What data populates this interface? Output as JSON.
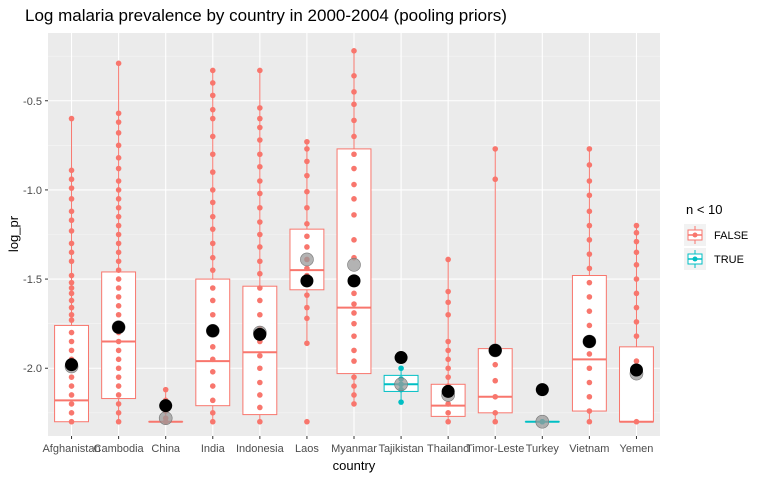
{
  "chart_data": {
    "type": "box",
    "title": "Log malaria prevalence by country in 2000-2004 (pooling priors)",
    "xlabel": "country",
    "ylabel": "log_pr",
    "ylim": [
      -2.38,
      -0.12
    ],
    "yticks": [
      -2.0,
      -1.5,
      -1.0,
      -0.5
    ],
    "ytick_labels": [
      "-2.0",
      "-1.5",
      "-1.0",
      "-0.5"
    ],
    "grid": true,
    "legend": {
      "title": "n < 10",
      "placement": "right",
      "items": [
        {
          "label": "FALSE",
          "color": "#F8766D"
        },
        {
          "label": "TRUE",
          "color": "#00BFC4"
        }
      ]
    },
    "colors": {
      "panel": "#EBEBEB",
      "grid_major": "#FFFFFF",
      "false": "#F8766D",
      "true": "#00BFC4",
      "estimate": "#000000",
      "prior": "#999999"
    },
    "categories": [
      "Afghanistan",
      "Cambodia",
      "China",
      "India",
      "Indonesia",
      "Laos",
      "Myanmar",
      "Tajikistan",
      "Thailand",
      "Timor-Leste",
      "Turkey",
      "Vietnam",
      "Yemen"
    ],
    "boxes": [
      {
        "country": "Afghanistan",
        "n_lt_10": "FALSE",
        "min": -2.3,
        "q1": -2.3,
        "median": -2.18,
        "q3": -1.76,
        "max": -0.6,
        "estimate": -1.98,
        "prior": -1.99,
        "points": [
          -0.6,
          -0.89,
          -0.94,
          -0.99,
          -1.05,
          -1.12,
          -1.17,
          -1.23,
          -1.3,
          -1.35,
          -1.4,
          -1.48,
          -1.52,
          -1.55,
          -1.58,
          -1.62,
          -1.66,
          -1.7,
          -1.73,
          -1.8,
          -1.85,
          -1.9,
          -1.95,
          -2.0,
          -2.05,
          -2.1,
          -2.15,
          -2.2,
          -2.25,
          -2.3
        ]
      },
      {
        "country": "Cambodia",
        "n_lt_10": "FALSE",
        "min": -2.3,
        "q1": -2.17,
        "median": -1.85,
        "q3": -1.46,
        "max": -0.29,
        "estimate": -1.77,
        "prior": -1.77,
        "points": [
          -0.29,
          -0.57,
          -0.62,
          -0.68,
          -0.75,
          -0.82,
          -0.88,
          -0.95,
          -1.0,
          -1.05,
          -1.1,
          -1.15,
          -1.2,
          -1.25,
          -1.3,
          -1.35,
          -1.4,
          -1.45,
          -1.5,
          -1.55,
          -1.6,
          -1.65,
          -1.7,
          -1.75,
          -1.8,
          -1.85,
          -1.9,
          -1.95,
          -2.0,
          -2.05,
          -2.1,
          -2.15,
          -2.2,
          -2.25,
          -2.3
        ]
      },
      {
        "country": "China",
        "n_lt_10": "FALSE",
        "min": -2.3,
        "q1": -2.3,
        "median": -2.3,
        "q3": -2.3,
        "max": -2.12,
        "estimate": -2.21,
        "prior": -2.28,
        "points": [
          -2.12,
          -2.18,
          -2.24,
          -2.28,
          -2.3
        ]
      },
      {
        "country": "India",
        "n_lt_10": "FALSE",
        "min": -2.3,
        "q1": -2.21,
        "median": -1.96,
        "q3": -1.5,
        "max": -0.33,
        "estimate": -1.79,
        "prior": -1.79,
        "points": [
          -0.33,
          -0.4,
          -0.47,
          -0.55,
          -0.6,
          -0.7,
          -0.8,
          -0.9,
          -1.0,
          -1.07,
          -1.15,
          -1.22,
          -1.3,
          -1.38,
          -1.45,
          -1.55,
          -1.62,
          -1.7,
          -1.8,
          -1.88,
          -1.95,
          -2.02,
          -2.1,
          -2.18,
          -2.25,
          -2.3
        ]
      },
      {
        "country": "Indonesia",
        "n_lt_10": "FALSE",
        "min": -2.3,
        "q1": -2.26,
        "median": -1.91,
        "q3": -1.54,
        "max": -0.33,
        "estimate": -1.81,
        "prior": -1.8,
        "points": [
          -0.33,
          -0.54,
          -0.6,
          -0.65,
          -0.72,
          -0.8,
          -0.87,
          -0.95,
          -1.02,
          -1.1,
          -1.18,
          -1.25,
          -1.32,
          -1.4,
          -1.47,
          -1.55,
          -1.62,
          -1.7,
          -1.78,
          -1.85,
          -1.93,
          -2.0,
          -2.08,
          -2.15,
          -2.22,
          -2.3
        ]
      },
      {
        "country": "Laos",
        "n_lt_10": "FALSE",
        "min": -1.86,
        "q1": -1.56,
        "median": -1.45,
        "q3": -1.22,
        "max": -0.73,
        "estimate": -1.51,
        "prior": -1.39,
        "points": [
          -0.73,
          -0.77,
          -0.84,
          -0.92,
          -1.01,
          -1.1,
          -1.19,
          -1.26,
          -1.32,
          -1.39,
          -1.44,
          -1.48,
          -1.53,
          -1.59,
          -1.66,
          -1.72,
          -1.86,
          -2.3
        ]
      },
      {
        "country": "Myanmar",
        "n_lt_10": "FALSE",
        "min": -2.2,
        "q1": -2.03,
        "median": -1.66,
        "q3": -0.77,
        "max": -0.22,
        "estimate": -1.51,
        "prior": -1.42,
        "points": [
          -0.22,
          -0.36,
          -0.45,
          -0.52,
          -0.61,
          -0.7,
          -0.8,
          -0.88,
          -0.97,
          -1.05,
          -1.14,
          -1.28,
          -1.38,
          -1.5,
          -1.58,
          -1.64,
          -1.69,
          -1.75,
          -1.82,
          -1.9,
          -1.96,
          -2.05,
          -2.1,
          -2.15,
          -2.2
        ]
      },
      {
        "country": "Tajikistan",
        "n_lt_10": "TRUE",
        "min": -2.19,
        "q1": -2.13,
        "median": -2.09,
        "q3": -2.04,
        "max": -2.0,
        "estimate": -1.94,
        "prior": -2.09,
        "points": [
          -2.0,
          -2.06,
          -2.09,
          -2.12,
          -2.19
        ]
      },
      {
        "country": "Thailand",
        "n_lt_10": "FALSE",
        "min": -2.3,
        "q1": -2.27,
        "median": -2.21,
        "q3": -2.09,
        "max": -1.39,
        "estimate": -2.13,
        "prior": -2.15,
        "points": [
          -1.39,
          -1.57,
          -1.63,
          -1.7,
          -1.85,
          -1.9,
          -1.95,
          -2.0,
          -2.05,
          -2.1,
          -2.15,
          -2.2,
          -2.25,
          -2.3
        ]
      },
      {
        "country": "Timor-Leste",
        "n_lt_10": "FALSE",
        "min": -2.3,
        "q1": -2.25,
        "median": -2.16,
        "q3": -1.89,
        "max": -0.77,
        "estimate": -1.9,
        "prior": -1.9,
        "points": [
          -0.77,
          -0.94,
          -1.89,
          -1.98,
          -2.07,
          -2.16,
          -2.25,
          -2.3
        ]
      },
      {
        "country": "Turkey",
        "n_lt_10": "TRUE",
        "min": -2.3,
        "q1": -2.3,
        "median": -2.3,
        "q3": -2.3,
        "max": -2.3,
        "estimate": -2.12,
        "prior": -2.3,
        "points": [
          -2.3
        ]
      },
      {
        "country": "Vietnam",
        "n_lt_10": "FALSE",
        "min": -2.3,
        "q1": -2.24,
        "median": -1.95,
        "q3": -1.48,
        "max": -0.77,
        "estimate": -1.85,
        "prior": -1.85,
        "points": [
          -0.77,
          -0.86,
          -0.95,
          -1.03,
          -1.12,
          -1.2,
          -1.28,
          -1.36,
          -1.44,
          -1.52,
          -1.6,
          -1.68,
          -1.76,
          -1.84,
          -1.92,
          -2.0,
          -2.08,
          -2.16,
          -2.24,
          -2.3
        ]
      },
      {
        "country": "Yemen",
        "n_lt_10": "FALSE",
        "min": -2.3,
        "q1": -2.3,
        "median": -2.3,
        "q3": -1.88,
        "max": -1.2,
        "estimate": -2.01,
        "prior": -2.03,
        "points": [
          -1.2,
          -1.24,
          -1.29,
          -1.35,
          -1.42,
          -1.5,
          -1.58,
          -1.66,
          -1.74,
          -1.82,
          -1.96,
          -2.02,
          -2.3
        ]
      }
    ]
  }
}
